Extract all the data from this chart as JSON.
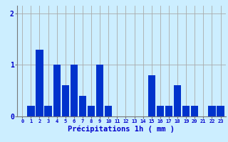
{
  "values": [
    0,
    0.2,
    1.3,
    0.2,
    1.0,
    0.6,
    1.0,
    0.4,
    0.2,
    1.0,
    0.2,
    0,
    0,
    0,
    0,
    0.8,
    0.2,
    0.2,
    0.6,
    0.2,
    0.2,
    0,
    0.2,
    0.2
  ],
  "categories": [
    0,
    1,
    2,
    3,
    4,
    5,
    6,
    7,
    8,
    9,
    10,
    11,
    12,
    13,
    14,
    15,
    16,
    17,
    18,
    19,
    20,
    21,
    22,
    23
  ],
  "bar_color": "#0033cc",
  "background_color": "#cceeff",
  "grid_color": "#aaaaaa",
  "xlabel": "Précipitations 1h ( mm )",
  "xlabel_color": "#0000cc",
  "tick_color": "#0000cc",
  "ylabel_ticks": [
    0,
    1,
    2
  ],
  "ylim": [
    0,
    2.15
  ],
  "xlim": [
    -0.6,
    23.6
  ]
}
